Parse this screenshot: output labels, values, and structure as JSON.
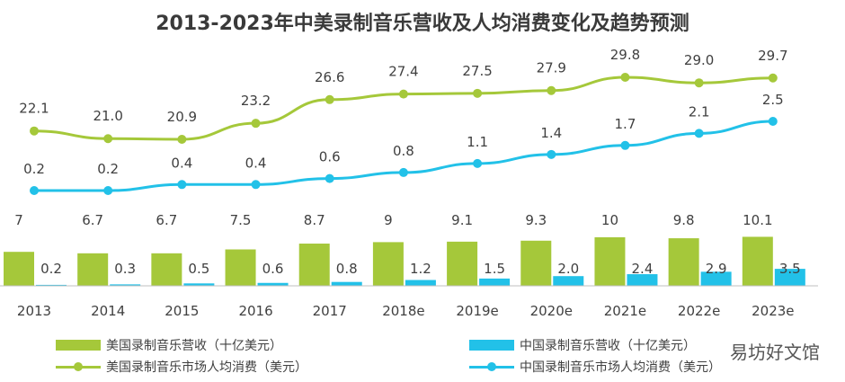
{
  "chart_data": {
    "type": "bar",
    "title": "2013-2023年中美录制音乐营收及人均消费变化及趋势预测",
    "categories": [
      "2013",
      "2014",
      "2015",
      "2016",
      "2017",
      "2018e",
      "2019e",
      "2020e",
      "2021e",
      "2022e",
      "2023e"
    ],
    "bar_series": [
      {
        "name": "美国录制音乐营收（十亿美元）",
        "color": "#a5c83a",
        "values": [
          7,
          6.7,
          6.7,
          7.5,
          8.7,
          9,
          9.1,
          9.3,
          10,
          9.8,
          10.1
        ],
        "labels": [
          "7",
          "6.7",
          "6.7",
          "7.5",
          "8.7",
          "9",
          "9.1",
          "9.3",
          "10",
          "9.8",
          "10.1"
        ]
      },
      {
        "name": "中国录制音乐营收（十亿美元）",
        "color": "#22c1e8",
        "values": [
          0.2,
          0.3,
          0.5,
          0.6,
          0.8,
          1.2,
          1.5,
          2.0,
          2.4,
          2.9,
          3.5
        ],
        "labels": [
          "0.2",
          "0.3",
          "0.5",
          "0.6",
          "0.8",
          "1.2",
          "1.5",
          "2.0",
          "2.4",
          "2.9",
          "3.5"
        ]
      }
    ],
    "line_series": [
      {
        "name": "美国录制音乐市场人均消费（美元）",
        "color": "#a5c83a",
        "values": [
          22.1,
          21.0,
          20.9,
          23.2,
          26.6,
          27.4,
          27.5,
          27.9,
          29.8,
          29.0,
          29.7
        ],
        "labels": [
          "22.1",
          "21.0",
          "20.9",
          "23.2",
          "26.6",
          "27.4",
          "27.5",
          "27.9",
          "29.8",
          "29.0",
          "29.7"
        ]
      },
      {
        "name": "中国录制音乐市场人均消费（美元）",
        "color": "#22c1e8",
        "values": [
          0.2,
          0.2,
          0.4,
          0.4,
          0.6,
          0.8,
          1.1,
          1.4,
          1.7,
          2.1,
          2.5
        ],
        "labels": [
          "0.2",
          "0.2",
          "0.4",
          "0.4",
          "0.6",
          "0.8",
          "1.1",
          "1.4",
          "1.7",
          "2.1",
          "2.5"
        ]
      }
    ],
    "legend_position": "bottom",
    "grid": false
  },
  "watermark": "易坊好文馆"
}
